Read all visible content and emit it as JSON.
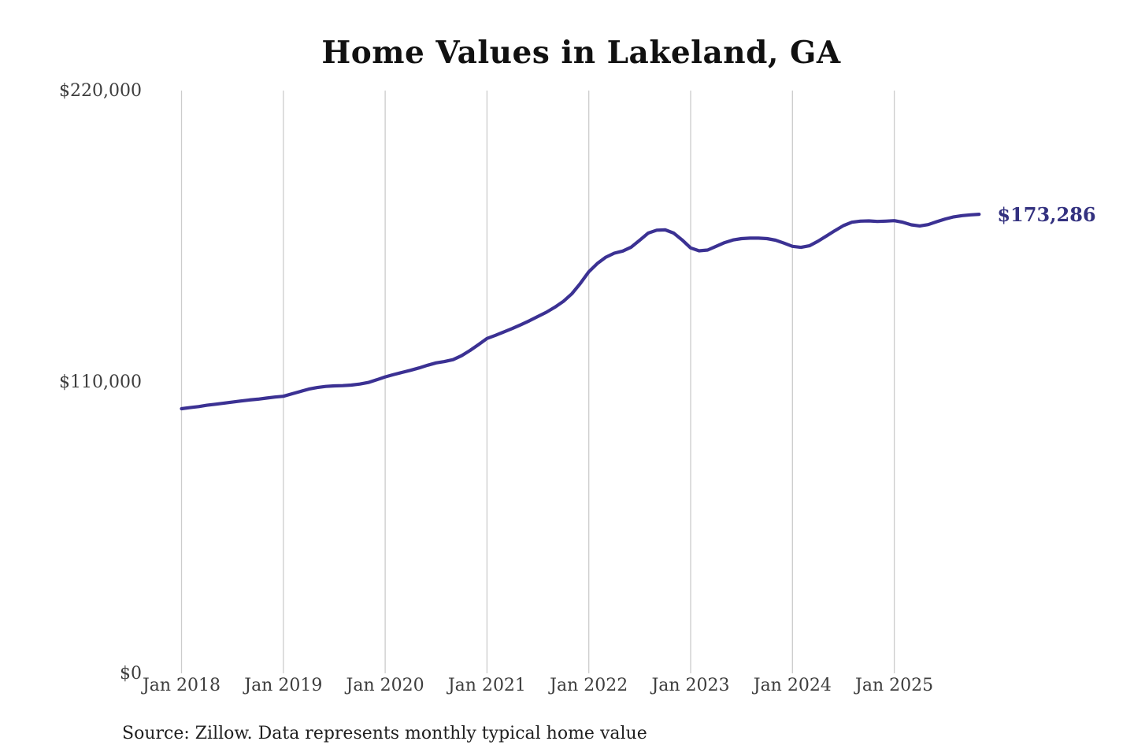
{
  "chart_data": {
    "type": "line",
    "title": "Home Values in Lakeland, GA",
    "source_note": "Source: Zillow. Data represents monthly typical home value",
    "end_label": "$173,286",
    "latest_value": 173286,
    "xlabel": "",
    "ylabel": "",
    "ylim": [
      0,
      220000
    ],
    "grid": "vertical-only",
    "legend": "none",
    "y_ticks": [
      {
        "label": "$220,000",
        "value": 220000
      },
      {
        "label": "$110,000",
        "value": 110000
      },
      {
        "label": "$0",
        "value": 0
      }
    ],
    "x_ticks": [
      {
        "label": "Jan 2018",
        "month_index": 0
      },
      {
        "label": "Jan 2019",
        "month_index": 12
      },
      {
        "label": "Jan 2020",
        "month_index": 24
      },
      {
        "label": "Jan 2021",
        "month_index": 36
      },
      {
        "label": "Jan 2022",
        "month_index": 48
      },
      {
        "label": "Jan 2023",
        "month_index": 60
      },
      {
        "label": "Jan 2024",
        "month_index": 72
      },
      {
        "label": "Jan 2025",
        "month_index": 84
      }
    ],
    "x_start": "2018-01",
    "x_end": "2025-11",
    "x_cadence": "monthly",
    "series": [
      {
        "name": "Typical home value",
        "monthly_values": [
          99900,
          100300,
          100700,
          101200,
          101600,
          102000,
          102400,
          102800,
          103200,
          103500,
          103900,
          104300,
          104600,
          105500,
          106400,
          107300,
          107900,
          108300,
          108500,
          108600,
          108800,
          109200,
          109800,
          110800,
          111900,
          112800,
          113600,
          114400,
          115300,
          116300,
          117200,
          117700,
          118400,
          119900,
          121900,
          124100,
          126400,
          127600,
          128900,
          130200,
          131600,
          133100,
          134700,
          136300,
          138200,
          140400,
          143300,
          147200,
          151600,
          154700,
          157100,
          158600,
          159400,
          160900,
          163500,
          166200,
          167300,
          167400,
          166200,
          163600,
          160600,
          159500,
          159800,
          161200,
          162600,
          163600,
          164100,
          164300,
          164300,
          164100,
          163500,
          162400,
          161200,
          160800,
          161400,
          163100,
          165100,
          167100,
          169000,
          170300,
          170700,
          170800,
          170600,
          170700,
          170900,
          170300,
          169300,
          168900,
          169400,
          170500,
          171500,
          172300,
          172800,
          173100,
          173286
        ]
      }
    ],
    "colors": {
      "line": "#3b3193",
      "end_label": "#33317f",
      "grid": "#cccccc",
      "tick_text": "#3d3d3d",
      "title_text": "#111111",
      "background": "#ffffff"
    }
  }
}
